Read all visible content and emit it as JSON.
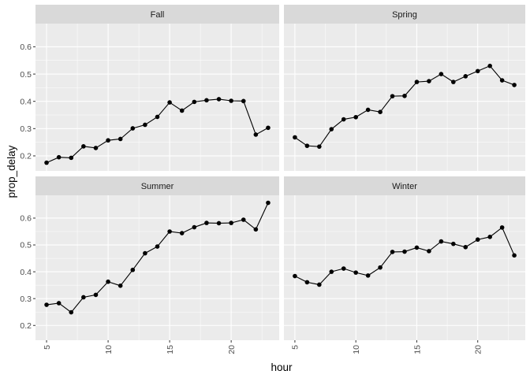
{
  "chart_data": {
    "type": "line",
    "xlabel": "hour",
    "ylabel": "prop_delay",
    "xlim": [
      4.1,
      23.9
    ],
    "ylim": [
      0.145,
      0.685
    ],
    "xticks": [
      5,
      10,
      15,
      20
    ],
    "xtick_labels": [
      "5",
      "10",
      "15",
      "20"
    ],
    "yticks": [
      0.2,
      0.3,
      0.4,
      0.5,
      0.6
    ],
    "ytick_labels": [
      "0.2",
      "0.3",
      "0.4",
      "0.5",
      "0.6"
    ],
    "grid": true,
    "x": [
      5,
      6,
      7,
      8,
      9,
      10,
      11,
      12,
      13,
      14,
      15,
      16,
      17,
      18,
      19,
      20,
      21,
      22,
      23
    ],
    "panels": [
      {
        "name": "Fall",
        "values": [
          0.175,
          0.195,
          0.193,
          0.235,
          0.229,
          0.257,
          0.262,
          0.301,
          0.314,
          0.343,
          0.396,
          0.366,
          0.398,
          0.404,
          0.408,
          0.402,
          0.401,
          0.278,
          0.303
        ]
      },
      {
        "name": "Spring",
        "values": [
          0.268,
          0.237,
          0.234,
          0.298,
          0.334,
          0.342,
          0.369,
          0.361,
          0.419,
          0.42,
          0.471,
          0.474,
          0.5,
          0.471,
          0.492,
          0.511,
          0.53,
          0.477,
          0.46
        ]
      },
      {
        "name": "Summer",
        "values": [
          0.277,
          0.283,
          0.249,
          0.305,
          0.314,
          0.363,
          0.348,
          0.407,
          0.469,
          0.494,
          0.55,
          0.544,
          0.566,
          0.582,
          0.581,
          0.582,
          0.594,
          0.558,
          0.657
        ]
      },
      {
        "name": "Winter",
        "values": [
          0.384,
          0.361,
          0.352,
          0.4,
          0.412,
          0.397,
          0.386,
          0.416,
          0.474,
          0.475,
          0.49,
          0.477,
          0.513,
          0.504,
          0.492,
          0.52,
          0.53,
          0.565,
          0.461
        ]
      }
    ]
  }
}
